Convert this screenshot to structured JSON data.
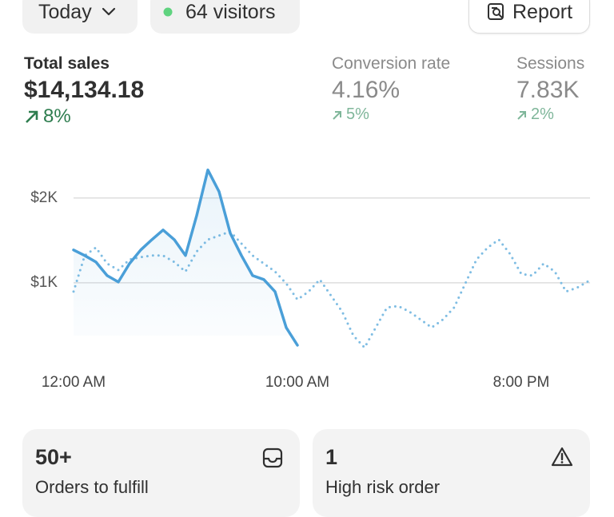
{
  "header": {
    "date_button": "Today",
    "visitors": "64 visitors",
    "report_button": "Report"
  },
  "metrics": [
    {
      "label": "Total sales",
      "value": "$14,134.18",
      "change": "8%"
    },
    {
      "label": "Conversion rate",
      "value": "4.16%",
      "change": "5%"
    },
    {
      "label": "Sessions",
      "value": "7.83K",
      "change": "2%"
    }
  ],
  "chart_data": {
    "type": "line",
    "x": [
      0,
      0.5,
      1,
      1.5,
      2,
      2.5,
      3,
      3.5,
      4,
      4.5,
      5,
      5.5,
      6,
      6.5,
      7,
      7.5,
      8,
      8.5,
      9,
      9.5,
      10,
      10.5,
      11,
      11.5,
      12,
      12.5,
      13,
      13.5,
      14,
      14.5,
      15,
      15.5,
      16,
      16.5,
      17,
      17.5,
      18,
      18.5,
      19,
      19.5,
      20,
      20.5,
      21,
      21.5,
      22,
      22.5,
      23
    ],
    "series": [
      {
        "color": "#4a9fd8",
        "style": "solid",
        "area": true,
        "values": [
          1387,
          1321,
          1245,
          1085,
          1009,
          1226,
          1387,
          1509,
          1623,
          1509,
          1321,
          1792,
          2330,
          2075,
          1585,
          1321,
          1085,
          1038,
          896,
          472,
          264,
          null,
          null,
          null,
          null,
          null,
          null,
          null,
          null,
          null,
          null,
          null,
          null,
          null,
          null,
          null,
          null,
          null,
          null,
          null,
          null,
          null,
          null,
          null,
          null,
          null,
          null
        ]
      },
      {
        "color": "#7fbde3",
        "style": "dotted",
        "area": false,
        "values": [
          896,
          1321,
          1415,
          1226,
          1151,
          1274,
          1302,
          1321,
          1321,
          1245,
          1132,
          1368,
          1509,
          1557,
          1604,
          1462,
          1321,
          1226,
          1132,
          991,
          802,
          896,
          1038,
          849,
          660,
          377,
          236,
          472,
          708,
          726,
          660,
          566,
          472,
          566,
          708,
          991,
          1274,
          1415,
          1509,
          1340,
          1104,
          1085,
          1226,
          1132,
          896,
          943,
          1019
        ]
      }
    ],
    "xlim": [
      0,
      23
    ],
    "ylim": [
      0,
      2450
    ],
    "xticks": [
      {
        "value": 0,
        "label": "12:00 AM"
      },
      {
        "value": 10,
        "label": "10:00 AM"
      },
      {
        "value": 20,
        "label": "8:00 PM"
      }
    ],
    "yticks": [
      {
        "value": 1000,
        "label": "$1K"
      },
      {
        "value": 2000,
        "label": "$2K"
      }
    ],
    "grid": true
  },
  "cards": [
    {
      "value": "50+",
      "label": "Orders to fulfill"
    },
    {
      "value": "1",
      "label": "High risk order"
    }
  ]
}
